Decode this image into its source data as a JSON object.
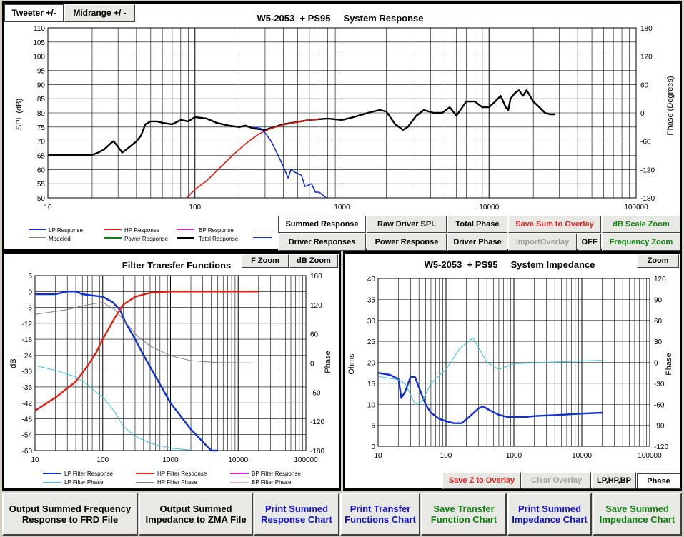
{
  "tabs": {
    "tweeter": "Tweeter +/-",
    "midrange": "Midrange  +/ -"
  },
  "system_response": {
    "title": "W5-2053  + PS95     System Response",
    "ylabel": "SPL (dB)",
    "y2label": "Phase (Degrees)",
    "yticks": [
      "110",
      "105",
      "100",
      "95",
      "90",
      "85",
      "80",
      "75",
      "70",
      "65",
      "60",
      "55",
      "50"
    ],
    "y2ticks": [
      "180",
      "120",
      "60",
      "0",
      "-60",
      "-120",
      "-180"
    ],
    "xticks": [
      "10",
      "100",
      "1000",
      "10000",
      "100000"
    ],
    "legend": [
      "LP Response",
      "HP Response",
      "BP Response",
      "",
      "Modeled",
      "Power Response",
      "Total Response",
      ""
    ],
    "buttons": {
      "summed": "Summed Response",
      "raw": "Raw Driver SPL",
      "total_phase": "Total Phase",
      "save_sum": "Save Sum to Overlay",
      "db_zoom": "dB Scale Zoom",
      "driver_resp": "Driver Responses",
      "power": "Power Response",
      "driver_phase": "Driver Phase",
      "import": "ImportOverlay",
      "off": "OFF",
      "freq_zoom": "Frequency Zoom"
    }
  },
  "filter": {
    "title": "Filter Transfer Functions",
    "ylabel": "dB",
    "y2label": "Phase",
    "yticks": [
      "6",
      "0",
      "-6",
      "-12",
      "-18",
      "-24",
      "-30",
      "-36",
      "-42",
      "-48",
      "-54",
      "-60"
    ],
    "y2ticks": [
      "180",
      "120",
      "60",
      "0",
      "-60",
      "-120",
      "-180"
    ],
    "xticks": [
      "10",
      "100",
      "1000",
      "10000",
      "100000"
    ],
    "buttons": {
      "fzoom": "F Zoom",
      "dbzoom": "dB Zoom"
    },
    "legend": [
      "LP Filter Response",
      "HP Filter Response",
      "BP Filter Response",
      "LP Filter Phase",
      "HP Filter Phase",
      "BP Filter Phase"
    ]
  },
  "impedance": {
    "title": "W5-2053  + PS95     System Impedance",
    "ylabel": "Ohms",
    "y2label": "Phase",
    "yticks": [
      "40",
      "35",
      "30",
      "25",
      "20",
      "15",
      "10",
      "5",
      "0"
    ],
    "y2ticks": [
      "120",
      "90",
      "60",
      "30",
      "0",
      "-30",
      "-60",
      "-90",
      "-120"
    ],
    "xticks": [
      "10",
      "100",
      "1000",
      "10000",
      "100000"
    ],
    "buttons": {
      "zoom": "Zoom",
      "save_z": "Save Z to Overlay",
      "clear": "Clear Overlay",
      "lphpbp": "LP,HP,BP",
      "phase": "Phase"
    }
  },
  "bottom_buttons": [
    "Output Summed Frequency Response  to FRD File",
    "Output  Summed Impedance to ZMA File",
    "Print Summed Response  Chart",
    "Print Transfer Functions Chart",
    "Save Transfer Function Chart",
    "Print Summed Impedance Chart",
    "Save Summed Impedance Chart"
  ],
  "colors": {
    "lp": "#1030d0",
    "hp": "#e02010",
    "bp": "#e020e0",
    "modeled": "#808080",
    "power": "#108010",
    "total": "#000000",
    "phase": "#40c0e0"
  }
}
